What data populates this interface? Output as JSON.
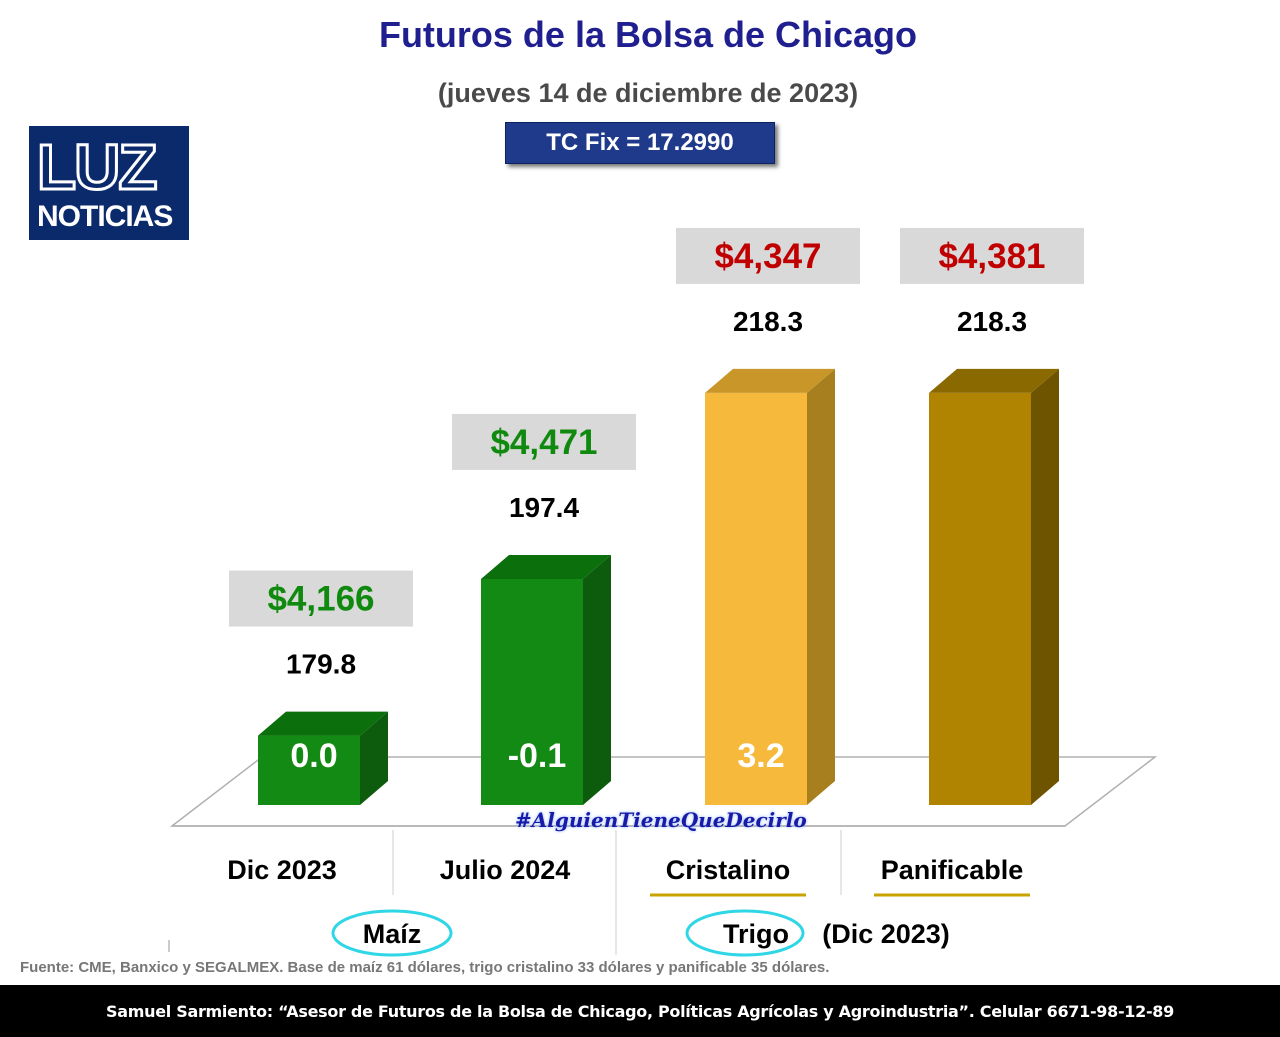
{
  "title": "Futuros de la Bolsa de Chicago",
  "subtitle": "(jueves 14 de diciembre de 2023)",
  "tc_fix": "TC Fix = 17.2990",
  "logo": {
    "line1": "LUZ",
    "line2": "NOTICIAS"
  },
  "hashtag": "#AlguienTieneQueDecirlo",
  "source": "Fuente: CME, Banxico y SEGALMEX. Base de maíz 61 dólares, trigo cristalino 33 dólares y panificable 35 dólares.",
  "footer": "Samuel Sarmiento: “Asesor de Futuros de la Bolsa de Chicago, Políticas Agrícolas y Agroindustria”. Celular 6671-98-12-89",
  "colors": {
    "title": "#1f1f8f",
    "green_front": "#138a13",
    "yellow_front": "#f6b93b",
    "gold_front": "#b08400",
    "price_green": "#0f8a0f",
    "price_red": "#c00000"
  },
  "chart_data": {
    "type": "bar",
    "categories": [
      "Dic 2023",
      "Julio 2024",
      "Cristalino",
      "Panificable"
    ],
    "values": [
      179.8,
      197.4,
      218.3,
      218.3
    ],
    "value_labels": [
      "179.8",
      "197.4",
      "218.3",
      "218.3"
    ],
    "prices": [
      "$4,166",
      "$4,471",
      "$4,347",
      "$4,381"
    ],
    "changes": [
      "0.0",
      "-0.1",
      "3.2",
      ""
    ],
    "groups": [
      {
        "label": "Maíz",
        "suffix": ""
      },
      {
        "label": "Trigo",
        "suffix": "(Dic 2023)"
      }
    ],
    "title": "Futuros de la Bolsa de Chicago"
  }
}
